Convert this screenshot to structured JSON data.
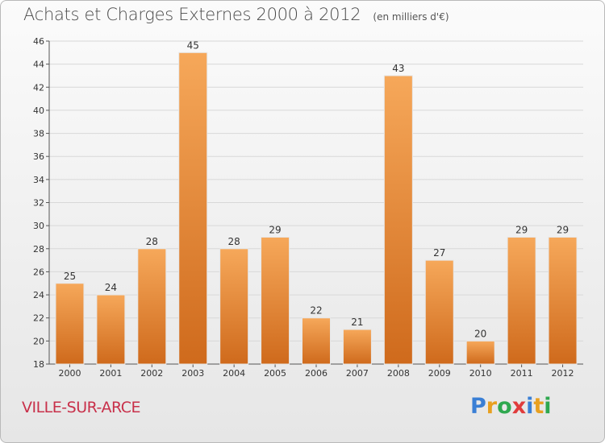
{
  "title": "Achats et Charges Externes 2000 à 2012",
  "unit_note": "(en milliers d'€)",
  "commune": "VILLE-SUR-ARCE",
  "logo": {
    "letters": [
      "P",
      "r",
      "o",
      "x",
      "i",
      "t",
      "i"
    ],
    "colors": [
      "#3a7fd5",
      "#e8a020",
      "#2fa84f",
      "#e03c3c",
      "#3a7fd5",
      "#e8a020",
      "#2fa84f"
    ]
  },
  "colors": {
    "bar_light": "#f6a85a",
    "bar_dark": "#cf6a1c",
    "axis": "#555555",
    "grid": "#d8d8d8",
    "commune": "#c8304a"
  },
  "chart_data": {
    "type": "bar",
    "title": "Achats et Charges Externes 2000 à 2012",
    "subtitle": "(en milliers d'€)",
    "categories": [
      "2000",
      "2001",
      "2002",
      "2003",
      "2004",
      "2005",
      "2006",
      "2007",
      "2008",
      "2009",
      "2010",
      "2011",
      "2012"
    ],
    "values": [
      25,
      24,
      28,
      45,
      28,
      29,
      22,
      21,
      43,
      27,
      20,
      29,
      29
    ],
    "ylim": [
      18,
      46
    ],
    "yticks": [
      18,
      20,
      22,
      24,
      26,
      28,
      30,
      32,
      34,
      36,
      38,
      40,
      42,
      44,
      46
    ],
    "grid": true,
    "data_labels": true
  }
}
